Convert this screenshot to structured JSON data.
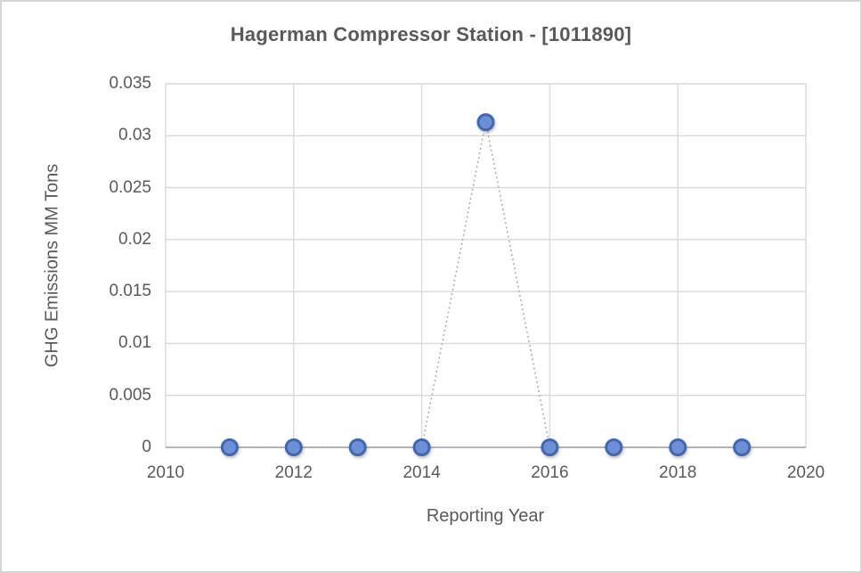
{
  "window": {
    "background": "#ffffff",
    "border_color": "#d4d4d4"
  },
  "chart_data": {
    "type": "line",
    "title": "Hagerman Compressor Station - [1011890]",
    "xlabel": "Reporting Year",
    "ylabel": "GHG Emissions MM Tons",
    "x": [
      2011,
      2012,
      2013,
      2014,
      2015,
      2016,
      2017,
      2018,
      2019
    ],
    "values": [
      0,
      0,
      0,
      0,
      0.0313,
      0,
      0,
      0,
      0
    ],
    "xlim": [
      2010,
      2020
    ],
    "ylim": [
      0,
      0.035
    ],
    "x_ticks": [
      2010,
      2012,
      2014,
      2016,
      2018,
      2020
    ],
    "x_tick_labels": [
      "2010",
      "2012",
      "2014",
      "2016",
      "2018",
      "2020"
    ],
    "y_ticks": [
      0,
      0.005,
      0.01,
      0.015,
      0.02,
      0.025,
      0.03,
      0.035
    ],
    "y_tick_labels": [
      "0",
      "0.005",
      "0.01",
      "0.015",
      "0.02",
      "0.025",
      "0.03",
      "0.035"
    ],
    "grid": true,
    "legend": "none",
    "line_style": "dotted",
    "marker": "circle",
    "colors": {
      "marker_fill": "#6e8ed8",
      "marker_border": "#4068b2",
      "connector_line": "#a6a6a6",
      "gridline": "#d9d9d9",
      "axis_line": "#acacac",
      "text": "#595959"
    }
  }
}
